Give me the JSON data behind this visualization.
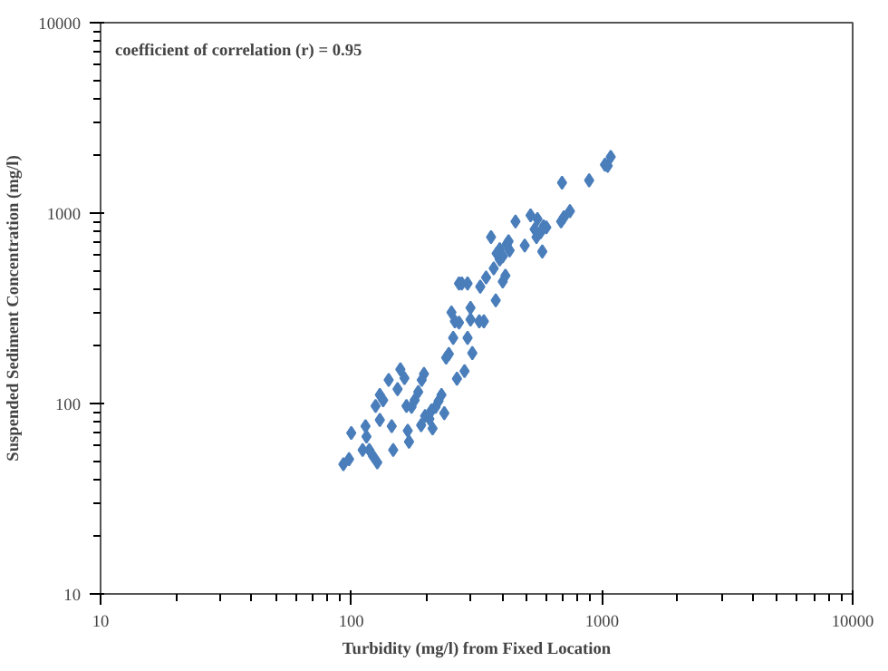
{
  "chart_data": {
    "type": "scatter",
    "xlabel": "Turbidity (mg/l) from Fixed Location",
    "ylabel": "Suspended Sediment Concentration (mg/l)",
    "annotations": [
      "coefficient of correlation (r) = 0.95"
    ],
    "log": "xy",
    "grid": false,
    "marker": "diamond",
    "xlim": [
      10,
      10000
    ],
    "ylim": [
      10,
      10000
    ],
    "xticks": [
      10,
      100,
      1000,
      10000
    ],
    "yticks": [
      10,
      100,
      1000,
      10000
    ],
    "series": [
      {
        "color": "#4a7ebb",
        "x": [
          93,
          98,
          100,
          111,
          114,
          115,
          122,
          118,
          127,
          125,
          130,
          134,
          130,
          141,
          145,
          147,
          153,
          157,
          163,
          166,
          168,
          170,
          174,
          179,
          185,
          190,
          191,
          195,
          197,
          205,
          209,
          211,
          217,
          223,
          229,
          235,
          239,
          245,
          255,
          251,
          259,
          269,
          264,
          283,
          291,
          299,
          304,
          299,
          324,
          338,
          269,
          291,
          327,
          345,
          370,
          377,
          391,
          402,
          412,
          417,
          428,
          361,
          380,
          402,
          424,
          452,
          492,
          519,
          553,
          539,
          548,
          569,
          578,
          585,
          600,
          687,
          705,
          745,
          693,
          889,
          1028,
          1084,
          1054,
          391,
          276
        ],
        "values": [
          48,
          51,
          70,
          57,
          76,
          67,
          53,
          57,
          49,
          97,
          111,
          104,
          82,
          133,
          76,
          57,
          119,
          151,
          136,
          97,
          72,
          63,
          96,
          104,
          115,
          77,
          133,
          143,
          86,
          83,
          92,
          74,
          96,
          103,
          111,
          89,
          174,
          182,
          221,
          301,
          270,
          266,
          135,
          148,
          221,
          318,
          184,
          276,
          270,
          270,
          427,
          427,
          411,
          459,
          512,
          348,
          571,
          437,
          469,
          686,
          637,
          748,
          614,
          593,
          711,
          904,
          676,
          973,
          931,
          822,
          748,
          792,
          628,
          853,
          841,
          904,
          951,
          1023,
          1443,
          1486,
          1795,
          1972,
          1770,
          647,
          427
        ]
      }
    ]
  }
}
